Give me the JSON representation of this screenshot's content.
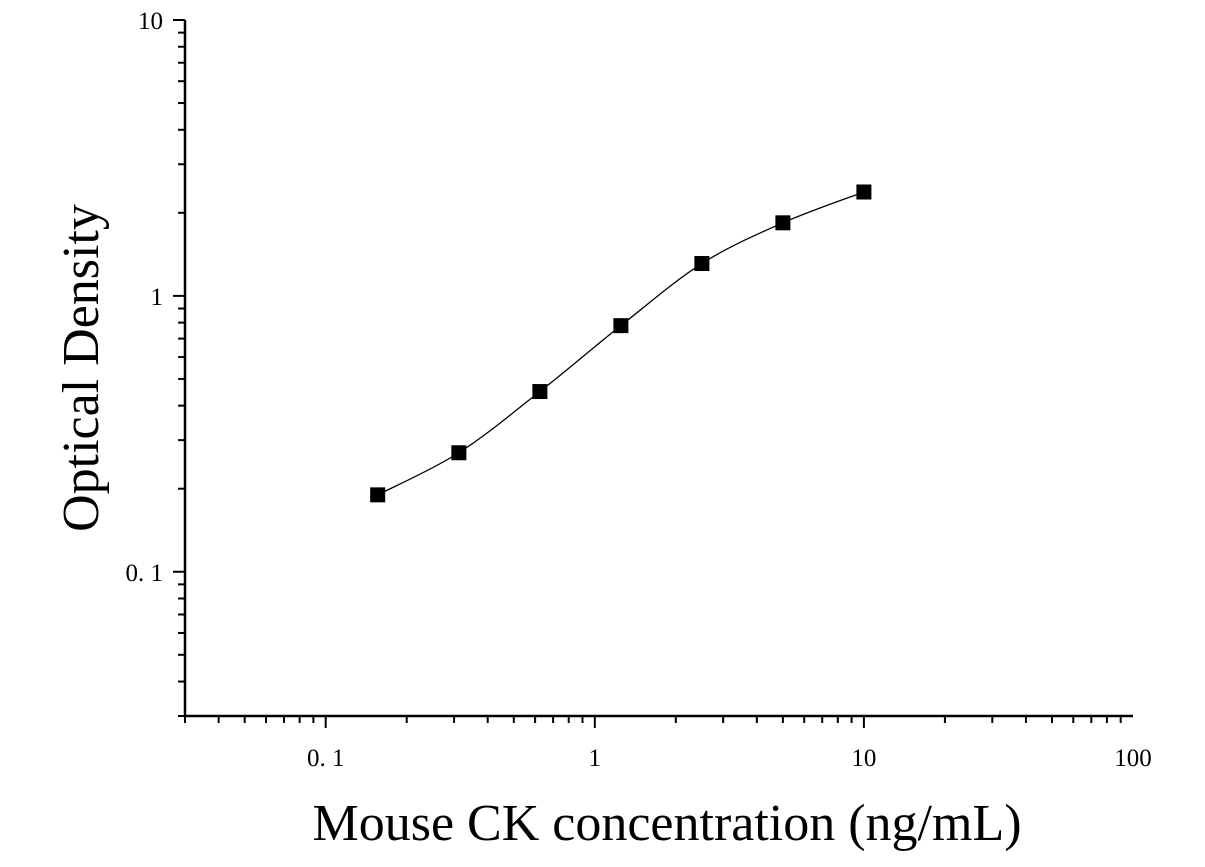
{
  "chart_data": {
    "type": "scatter",
    "title": "",
    "xlabel": "Mouse CK concentration (ng/mL)",
    "ylabel": "Optical Density",
    "xscale": "log",
    "yscale": "log",
    "xlim": [
      0.03,
      100
    ],
    "ylim": [
      0.03,
      10
    ],
    "x_ticks": [
      {
        "value": 0.1,
        "label": "0. 1"
      },
      {
        "value": 1,
        "label": "1"
      },
      {
        "value": 10,
        "label": "10"
      },
      {
        "value": 100,
        "label": "100"
      }
    ],
    "y_ticks": [
      {
        "value": 0.1,
        "label": "0. 1"
      },
      {
        "value": 1,
        "label": "1"
      },
      {
        "value": 10,
        "label": "10"
      }
    ],
    "grid": false,
    "series": [
      {
        "x": [
          0.156,
          0.3125,
          0.625,
          1.25,
          2.5,
          5,
          10
        ],
        "y": [
          0.19,
          0.27,
          0.45,
          0.78,
          1.31,
          1.84,
          2.38
        ],
        "marker": "square",
        "color": "#000000",
        "fit_curve": true
      }
    ]
  }
}
